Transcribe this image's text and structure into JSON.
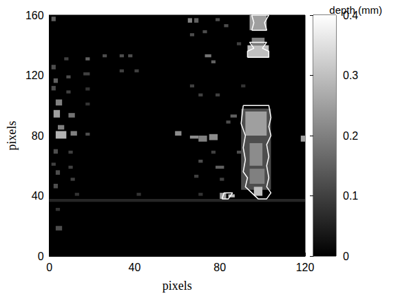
{
  "chart_data": {
    "type": "heatmap",
    "xlabel": "pixels",
    "ylabel": "pixels",
    "xlim": [
      0,
      120
    ],
    "ylim": [
      0,
      160
    ],
    "xticks": [
      0,
      40,
      80,
      120
    ],
    "yticks": [
      0,
      40,
      80,
      120,
      160
    ],
    "colorbar": {
      "label": "depth (mm)",
      "range": [
        0,
        0.4
      ],
      "ticks": [
        0,
        0.1,
        0.2,
        0.3,
        0.4
      ]
    },
    "cells": [
      [
        0,
        120,
        36,
        38,
        0.06
      ],
      [
        1,
        3,
        156,
        159,
        0.15
      ],
      [
        1,
        3,
        124,
        127,
        0.12
      ],
      [
        2,
        4,
        115,
        118,
        0.15
      ],
      [
        3,
        6,
        100,
        104,
        0.2
      ],
      [
        2,
        5,
        92,
        97,
        0.25
      ],
      [
        4,
        7,
        84,
        87,
        0.2
      ],
      [
        3,
        8,
        78,
        83,
        0.28
      ],
      [
        1,
        3,
        110,
        113,
        0.12
      ],
      [
        2,
        4,
        68,
        71,
        0.12
      ],
      [
        1,
        3,
        60,
        62,
        0.1
      ],
      [
        3,
        5,
        54,
        57,
        0.12
      ],
      [
        2,
        4,
        45,
        48,
        0.12
      ],
      [
        3,
        5,
        30,
        32,
        0.08
      ],
      [
        3,
        6,
        17,
        20,
        0.12
      ],
      [
        7,
        9,
        130,
        132,
        0.1
      ],
      [
        8,
        10,
        118,
        120,
        0.12
      ],
      [
        8,
        10,
        108,
        110,
        0.1
      ],
      [
        9,
        12,
        92,
        95,
        0.18
      ],
      [
        10,
        13,
        80,
        83,
        0.2
      ],
      [
        9,
        11,
        68,
        70,
        0.1
      ],
      [
        9,
        11,
        58,
        60,
        0.1
      ],
      [
        10,
        12,
        50,
        52,
        0.1
      ],
      [
        12,
        14,
        40,
        42,
        0.08
      ],
      [
        17,
        19,
        130,
        132,
        0.15
      ],
      [
        16,
        19,
        120,
        122,
        0.1
      ],
      [
        17,
        19,
        110,
        112,
        0.08
      ],
      [
        17,
        19,
        80,
        82,
        0.12
      ],
      [
        17,
        19,
        100,
        102,
        0.08
      ],
      [
        25,
        27,
        132,
        134,
        0.12
      ],
      [
        33,
        35,
        132,
        134,
        0.12
      ],
      [
        37,
        39,
        132,
        134,
        0.12
      ],
      [
        33,
        35,
        122,
        124,
        0.1
      ],
      [
        40,
        42,
        122,
        124,
        0.1
      ],
      [
        41,
        43,
        40,
        42,
        0.08
      ],
      [
        59,
        62,
        80,
        83,
        0.22
      ],
      [
        65,
        67,
        155,
        158,
        0.2
      ],
      [
        68,
        70,
        155,
        158,
        0.15
      ],
      [
        66,
        68,
        146,
        148,
        0.12
      ],
      [
        72,
        74,
        148,
        150,
        0.12
      ],
      [
        73,
        76,
        132,
        134,
        0.18
      ],
      [
        76,
        78,
        128,
        130,
        0.15
      ],
      [
        78,
        80,
        156,
        158,
        0.12
      ],
      [
        82,
        84,
        152,
        154,
        0.12
      ],
      [
        66,
        68,
        112,
        114,
        0.1
      ],
      [
        70,
        72,
        106,
        108,
        0.1
      ],
      [
        78,
        80,
        106,
        108,
        0.1
      ],
      [
        66,
        70,
        78,
        80,
        0.22
      ],
      [
        70,
        74,
        76,
        80,
        0.2
      ],
      [
        75,
        79,
        77,
        81,
        0.22
      ],
      [
        76,
        78,
        68,
        70,
        0.1
      ],
      [
        70,
        72,
        62,
        64,
        0.12
      ],
      [
        78,
        82,
        58,
        60,
        0.15
      ],
      [
        68,
        70,
        52,
        54,
        0.1
      ],
      [
        80,
        82,
        50,
        52,
        0.1
      ],
      [
        83,
        85,
        88,
        90,
        0.12
      ],
      [
        85,
        88,
        92,
        94,
        0.15
      ],
      [
        80,
        83,
        38,
        42,
        0.25
      ],
      [
        84,
        87,
        39,
        41,
        0.3
      ],
      [
        70,
        72,
        40,
        42,
        0.08
      ],
      [
        118,
        120,
        76,
        80,
        0.25
      ],
      [
        88,
        90,
        140,
        142,
        0.1
      ],
      [
        90,
        92,
        112,
        114,
        0.08
      ],
      [
        88,
        90,
        68,
        70,
        0.12
      ],
      [
        90,
        104,
        44,
        98,
        0.12
      ],
      [
        92,
        102,
        80,
        96,
        0.25
      ],
      [
        94,
        100,
        60,
        75,
        0.22
      ],
      [
        94,
        101,
        48,
        58,
        0.2
      ],
      [
        96,
        100,
        40,
        46,
        0.3
      ],
      [
        93,
        103,
        132,
        140,
        0.3
      ],
      [
        95,
        101,
        140,
        145,
        0.2
      ],
      [
        94,
        102,
        150,
        160,
        0.25
      ]
    ],
    "contours": [
      [
        [
          91,
          100
        ],
        [
          103,
          100
        ],
        [
          104,
          92
        ],
        [
          103,
          86
        ],
        [
          104,
          80
        ],
        [
          102,
          74
        ],
        [
          103,
          66
        ],
        [
          102,
          60
        ],
        [
          103,
          52
        ],
        [
          102,
          46
        ],
        [
          104,
          42
        ],
        [
          102,
          38
        ],
        [
          98,
          38
        ],
        [
          95,
          42
        ],
        [
          92,
          46
        ],
        [
          93,
          52
        ],
        [
          91,
          56
        ],
        [
          92,
          64
        ],
        [
          91,
          72
        ],
        [
          92,
          80
        ],
        [
          90,
          88
        ],
        [
          91,
          100
        ]
      ],
      [
        [
          81,
          38
        ],
        [
          84,
          38
        ],
        [
          86,
          42
        ],
        [
          82,
          42
        ],
        [
          81,
          38
        ]
      ],
      [
        [
          93,
          132
        ],
        [
          103,
          132
        ],
        [
          103,
          136
        ],
        [
          100,
          138
        ],
        [
          102,
          142
        ],
        [
          94,
          142
        ],
        [
          96,
          138
        ],
        [
          93,
          136
        ],
        [
          93,
          132
        ]
      ],
      [
        [
          95,
          150
        ],
        [
          102,
          150
        ],
        [
          101,
          155
        ],
        [
          103,
          160
        ],
        [
          95,
          160
        ],
        [
          96,
          155
        ],
        [
          95,
          150
        ]
      ]
    ]
  }
}
